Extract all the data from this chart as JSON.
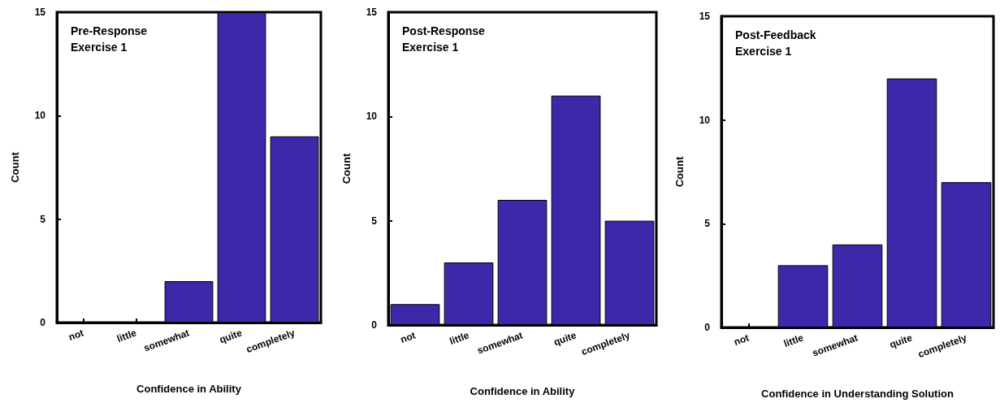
{
  "chart_data": [
    {
      "type": "bar",
      "title": "Pre-Response\nExercise 1",
      "xlabel": "Confidence in Ability",
      "ylabel": "Count",
      "categories": [
        "not",
        "little",
        "somewhat",
        "quite",
        "completely"
      ],
      "values": [
        0,
        0,
        2,
        15,
        9
      ],
      "color": "#3c28a8",
      "ylim": [
        0,
        15
      ],
      "yticks": [
        0,
        5,
        10,
        15
      ],
      "grid": false
    },
    {
      "type": "bar",
      "title": "Post-Response\nExercise 1",
      "xlabel": "Confidence in Ability",
      "ylabel": "Count",
      "categories": [
        "not",
        "little",
        "somewhat",
        "quite",
        "completely"
      ],
      "values": [
        1,
        3,
        6,
        11,
        5
      ],
      "color": "#3c28a8",
      "ylim": [
        0,
        15
      ],
      "yticks": [
        0,
        5,
        10,
        15
      ],
      "grid": false
    },
    {
      "type": "bar",
      "title": "Post-Feedback\nExercise 1",
      "xlabel": "Confidence in Understanding Solution",
      "ylabel": "Count",
      "categories": [
        "not",
        "little",
        "somewhat",
        "quite",
        "completely"
      ],
      "values": [
        0,
        3,
        4,
        12,
        7
      ],
      "color": "#3c28a8",
      "ylim": [
        0,
        15
      ],
      "yticks": [
        0,
        5,
        10,
        15
      ],
      "grid": false
    }
  ]
}
